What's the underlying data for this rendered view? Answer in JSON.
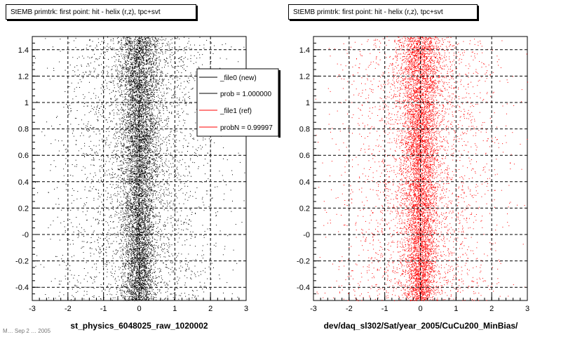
{
  "charts": [
    {
      "title": "StEMB primtrk: first point: hit - helix (r,z), tpc+svt",
      "xlabel": "st_physics_6048025_raw_1020002"
    },
    {
      "title": "StEMB primtrk: first point: hit - helix (r,z), tpc+svt",
      "xlabel": "dev/daq_sl302/Sat/year_2005/CuCu200_MinBias/"
    }
  ],
  "legend": {
    "entries": [
      "_file0 (new)",
      "prob = 1.000000",
      "_file1 (ref)",
      "probN = 0.99997"
    ]
  },
  "footer_text": "M… Sep 2 … 2005",
  "colors": {
    "file0": "#000000",
    "file1": "#ff0000",
    "legend_ref_line": "#ff0000"
  },
  "chart_data": [
    {
      "type": "scatter",
      "title": "StEMB primtrk: first point: hit - helix (r,z), tpc+svt",
      "xlabel": "st_physics_6048025_raw_1020002",
      "ylabel": "",
      "xlim": [
        -3,
        3
      ],
      "ylim": [
        -0.5,
        1.5
      ],
      "xticks": [
        "-3",
        "-2",
        "-1",
        "0",
        "1",
        "2",
        "3"
      ],
      "yticks": [
        "-0.4",
        "-0.2",
        "-0",
        "0.2",
        "0.4",
        "0.6",
        "0.8",
        "1",
        "1.2",
        "1.4"
      ],
      "grid": true,
      "legend_position": "top-right",
      "series": [
        {
          "name": "_file0 (new)",
          "color": "#000000",
          "x_center": 0.0,
          "x_spread_core": 0.25,
          "x_spread_tail": 1.1,
          "y_range": [
            -0.5,
            1.5
          ],
          "density_peak_y": 0.9
        }
      ]
    },
    {
      "type": "scatter",
      "title": "StEMB primtrk: first point: hit - helix (r,z), tpc+svt",
      "xlabel": "dev/daq_sl302/Sat/year_2005/CuCu200_MinBias/",
      "ylabel": "",
      "xlim": [
        -3,
        3
      ],
      "ylim": [
        -0.5,
        1.5
      ],
      "xticks": [
        "-3",
        "-2",
        "-1",
        "0",
        "1",
        "2",
        "3"
      ],
      "yticks": [
        "-0.4",
        "-0.2",
        "-0",
        "0.2",
        "0.4",
        "0.6",
        "0.8",
        "1",
        "1.2",
        "1.4"
      ],
      "grid": true,
      "series": [
        {
          "name": "_file1 (ref)",
          "color": "#ff0000",
          "x_center": 0.0,
          "x_spread_core": 0.25,
          "x_spread_tail": 1.1,
          "y_range": [
            -0.5,
            1.5
          ],
          "density_peak_y": 0.9
        }
      ]
    }
  ]
}
